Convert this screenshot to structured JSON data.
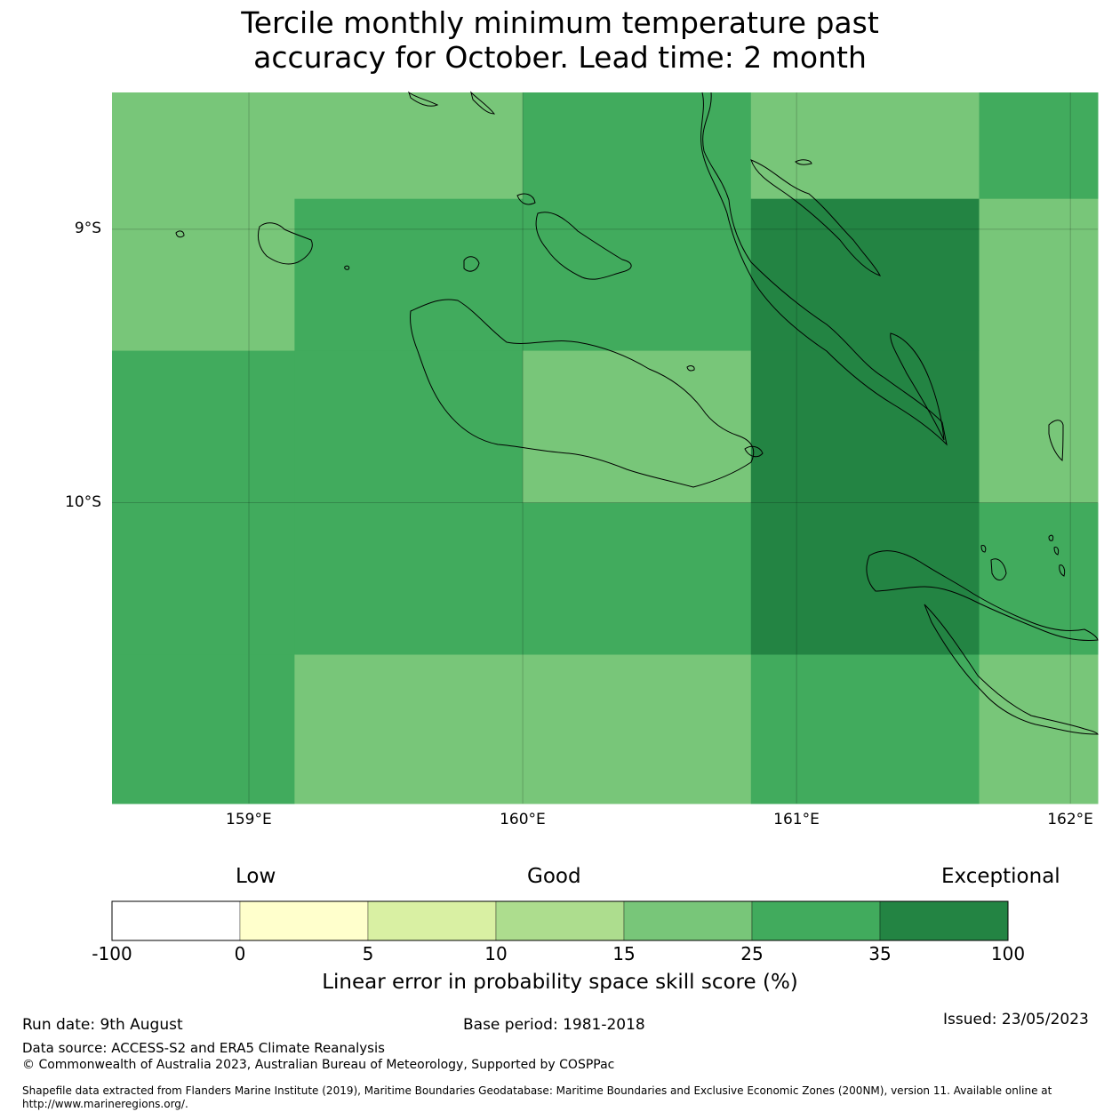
{
  "title": {
    "line1": "Tercile monthly minimum temperature past",
    "line2": "accuracy for October. Lead time: 2 month"
  },
  "map": {
    "lon_range": [
      158.5,
      162.1
    ],
    "lat_range": [
      -11.1,
      -8.5
    ],
    "lat_ticks": [
      {
        "value": -9,
        "label": "9°S"
      },
      {
        "value": -10,
        "label": "10°S"
      }
    ],
    "lon_ticks": [
      {
        "value": 159,
        "label": "159°E"
      },
      {
        "value": 160,
        "label": "160°E"
      },
      {
        "value": 161,
        "label": "161°E"
      },
      {
        "value": 162,
        "label": "162°E"
      }
    ],
    "grid_cells": {
      "lon_edges": [
        158.5,
        159.1667,
        160.0,
        160.8333,
        161.6667,
        162.1
      ],
      "lat_edges": [
        -8.5,
        -8.8889,
        -9.4444,
        -10.0,
        -10.5556,
        -11.1
      ],
      "classes": [
        [
          4,
          4,
          5,
          4,
          5
        ],
        [
          4,
          5,
          5,
          6,
          4
        ],
        [
          5,
          5,
          4,
          6,
          4
        ],
        [
          5,
          5,
          5,
          6,
          5
        ],
        [
          5,
          4,
          4,
          5,
          4
        ]
      ]
    }
  },
  "colorbar": {
    "categories": [
      {
        "label": "Low"
      },
      {
        "label": "Good"
      },
      {
        "label": "Exceptional"
      }
    ],
    "colors": [
      "#ffffff",
      "#ffffcc",
      "#d9f0a3",
      "#addd8e",
      "#78c679",
      "#41ab5d",
      "#238443"
    ],
    "ticks": [
      "-100",
      "0",
      "5",
      "10",
      "15",
      "25",
      "35",
      "100"
    ],
    "label": "Linear error in probability space skill score (%)"
  },
  "footer": {
    "run_date": "Run date: 9th August",
    "base_period": "Base period: 1981-2018",
    "issued": "Issued: 23/05/2023",
    "data_source": "Data source: ACCESS-S2 and ERA5 Climate Reanalysis",
    "copyright": "© Commonwealth of Australia 2023, Australian Bureau of Meteorology, Supported by COSPPac",
    "shapefile": "Shapefile data extracted from Flanders Marine Institute (2019), Maritime Boundaries Geodatabase: Maritime Boundaries and Exclusive Economic Zones (200NM), version 11. Available online at http://www.marineregions.org/."
  }
}
